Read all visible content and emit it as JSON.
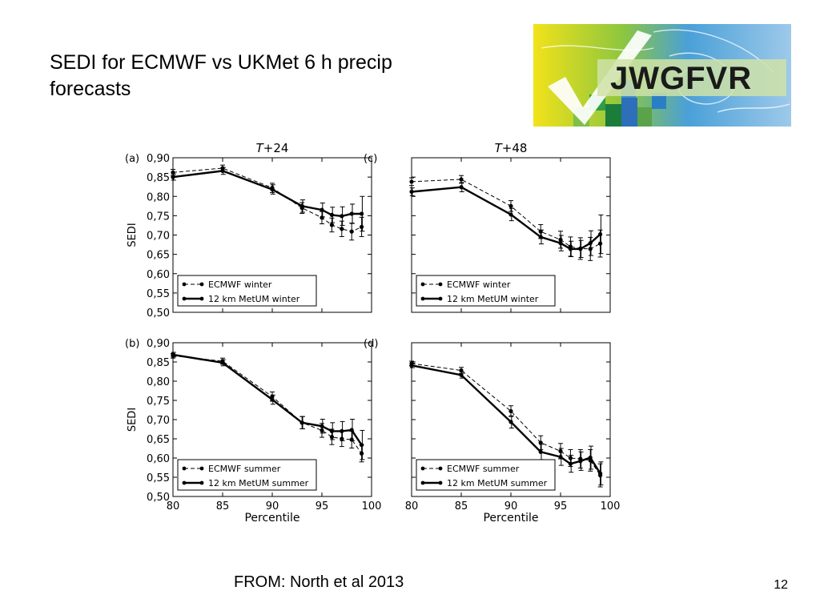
{
  "slide": {
    "title_line1": "SEDI for ECMWF vs UKMet 6 h precip",
    "title_line2": "forecasts",
    "logo_text": "JWGFVR",
    "source": "FROM: North et al 2013",
    "page_number": "12"
  },
  "chart_data": [
    {
      "type": "line",
      "panel": "(a)",
      "title_italic": "T",
      "title_rest": "+24",
      "ylabel": "SEDI",
      "xlabel": "",
      "ylim": [
        0.5,
        0.9
      ],
      "xlim": [
        80,
        100
      ],
      "yticks": [
        "0,90",
        "0,85",
        "0,80",
        "0,75",
        "0,70",
        "0,65",
        "0,60",
        "0,55",
        "0,50"
      ],
      "xticks": [],
      "legend_position": "lower-left",
      "series": [
        {
          "name": "ECMWF winter",
          "style": "dashed",
          "x": [
            80,
            85,
            90,
            93,
            95,
            96,
            97,
            98,
            99
          ],
          "y": [
            0.862,
            0.873,
            0.822,
            0.77,
            0.745,
            0.726,
            0.716,
            0.709,
            0.721
          ],
          "err": [
            0.008,
            0.008,
            0.012,
            0.014,
            0.016,
            0.018,
            0.02,
            0.022,
            0.025
          ]
        },
        {
          "name": "12 km MetUM winter",
          "style": "solid",
          "x": [
            80,
            85,
            90,
            93,
            95,
            96,
            97,
            98,
            99
          ],
          "y": [
            0.85,
            0.866,
            0.818,
            0.775,
            0.765,
            0.752,
            0.749,
            0.755,
            0.755
          ],
          "err": [
            0.008,
            0.009,
            0.012,
            0.016,
            0.018,
            0.02,
            0.024,
            0.025,
            0.045
          ]
        }
      ]
    },
    {
      "type": "line",
      "panel": "(c)",
      "title_italic": "T",
      "title_rest": "+48",
      "ylabel": "",
      "xlabel": "",
      "ylim": [
        0.5,
        0.9
      ],
      "xlim": [
        80,
        100
      ],
      "yticks": [],
      "xticks": [],
      "legend_position": "lower-left",
      "series": [
        {
          "name": "ECMWF winter",
          "style": "dashed",
          "x": [
            80,
            85,
            90,
            93,
            95,
            96,
            97,
            98,
            99
          ],
          "y": [
            0.838,
            0.844,
            0.775,
            0.709,
            0.688,
            0.67,
            0.665,
            0.664,
            0.678
          ],
          "err": [
            0.01,
            0.01,
            0.014,
            0.018,
            0.022,
            0.025,
            0.028,
            0.03,
            0.035
          ]
        },
        {
          "name": "12 km MetUM winter",
          "style": "solid",
          "x": [
            80,
            85,
            90,
            93,
            95,
            96,
            97,
            98,
            99
          ],
          "y": [
            0.812,
            0.824,
            0.753,
            0.695,
            0.679,
            0.664,
            0.664,
            0.679,
            0.702
          ],
          "err": [
            0.01,
            0.012,
            0.016,
            0.018,
            0.02,
            0.02,
            0.022,
            0.032,
            0.05
          ]
        }
      ]
    },
    {
      "type": "line",
      "panel": "(b)",
      "title_italic": "",
      "title_rest": "",
      "ylabel": "SEDI",
      "xlabel": "Percentile",
      "ylim": [
        0.5,
        0.9
      ],
      "xlim": [
        80,
        100
      ],
      "yticks": [
        "0,90",
        "0,85",
        "0,80",
        "0,75",
        "0,70",
        "0,65",
        "0,60",
        "0,55",
        "0,50"
      ],
      "xticks": [
        "80",
        "85",
        "90",
        "95",
        "100"
      ],
      "legend_position": "lower-left",
      "series": [
        {
          "name": "ECMWF summer",
          "style": "dashed",
          "x": [
            80,
            85,
            90,
            93,
            95,
            96,
            97,
            98,
            99
          ],
          "y": [
            0.866,
            0.852,
            0.76,
            0.692,
            0.672,
            0.655,
            0.65,
            0.648,
            0.612
          ],
          "err": [
            0.006,
            0.008,
            0.012,
            0.016,
            0.018,
            0.02,
            0.02,
            0.022,
            0.022
          ]
        },
        {
          "name": "12 km MetUM summer",
          "style": "solid",
          "x": [
            80,
            85,
            90,
            93,
            95,
            96,
            97,
            98,
            99
          ],
          "y": [
            0.869,
            0.848,
            0.752,
            0.692,
            0.683,
            0.67,
            0.67,
            0.673,
            0.634
          ],
          "err": [
            0.006,
            0.008,
            0.012,
            0.016,
            0.018,
            0.022,
            0.025,
            0.028,
            0.038
          ]
        }
      ]
    },
    {
      "type": "line",
      "panel": "(d)",
      "title_italic": "",
      "title_rest": "",
      "ylabel": "",
      "xlabel": "Percentile",
      "ylim": [
        0.5,
        0.9
      ],
      "xlim": [
        80,
        100
      ],
      "yticks": [],
      "xticks": [
        "80",
        "85",
        "90",
        "95",
        "100"
      ],
      "legend_position": "lower-left",
      "series": [
        {
          "name": "ECMWF summer",
          "style": "dashed",
          "x": [
            80,
            85,
            90,
            93,
            95,
            96,
            97,
            98,
            99
          ],
          "y": [
            0.846,
            0.828,
            0.722,
            0.64,
            0.618,
            0.6,
            0.598,
            0.594,
            0.555
          ],
          "err": [
            0.006,
            0.008,
            0.014,
            0.018,
            0.02,
            0.022,
            0.024,
            0.028,
            0.03
          ]
        },
        {
          "name": "12 km MetUM summer",
          "style": "solid",
          "x": [
            80,
            85,
            90,
            93,
            95,
            96,
            97,
            98,
            99
          ],
          "y": [
            0.841,
            0.816,
            0.694,
            0.616,
            0.603,
            0.585,
            0.592,
            0.601,
            0.56
          ],
          "err": [
            0.006,
            0.008,
            0.016,
            0.02,
            0.022,
            0.022,
            0.024,
            0.03,
            0.03
          ]
        }
      ]
    }
  ]
}
